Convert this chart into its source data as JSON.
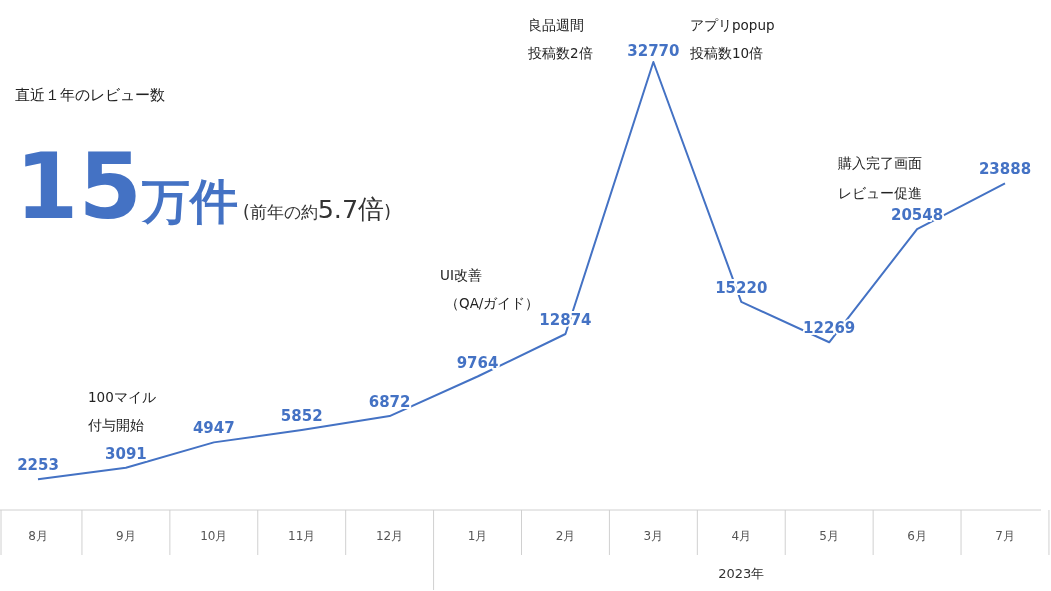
{
  "chart_data": {
    "type": "line",
    "categories": [
      "8月",
      "9月",
      "10月",
      "11月",
      "12月",
      "1月",
      "2月",
      "3月",
      "4月",
      "5月",
      "6月",
      "7月"
    ],
    "series": [
      {
        "color": "#4472c4",
        "values": [
          2253,
          3091,
          4947,
          5852,
          6872,
          9764,
          12874,
          32770,
          15220,
          12269,
          20548,
          23888
        ]
      }
    ],
    "data_labels": true,
    "annotations": [
      "直近１年のレビュー数",
      "15万件",
      "(前年の約5.7倍)",
      "2023年",
      "100マイル",
      "付与開始",
      "UI改善",
      "（QA/ガイド）",
      "良品週間",
      "投稿数2倍",
      "アプリpopup",
      "投稿数10倍",
      "購入完了画面",
      "レビュー促進"
    ]
  }
}
